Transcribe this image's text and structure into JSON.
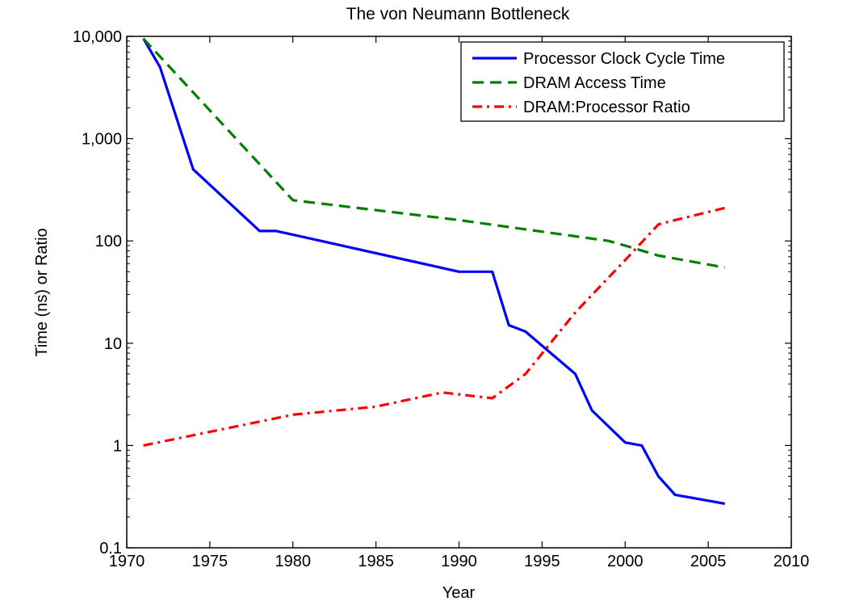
{
  "chart_data": {
    "type": "line",
    "title": "The von Neumann Bottleneck",
    "xlabel": "Year",
    "ylabel": "Time (ns) or Ratio",
    "xlim": [
      1970,
      2010
    ],
    "ylim": [
      0.1,
      10000
    ],
    "yscale": "log",
    "xticks": [
      1970,
      1975,
      1980,
      1985,
      1990,
      1995,
      2000,
      2005,
      2010
    ],
    "xtick_labels": [
      "1970",
      "1975",
      "1980",
      "1985",
      "1990",
      "1995",
      "2000",
      "2005",
      "2010"
    ],
    "yticks": [
      0.1,
      1,
      10,
      100,
      1000,
      10000
    ],
    "ytick_labels": [
      "0.1",
      "1",
      "10",
      "100",
      "1,000",
      "10,000"
    ],
    "grid": false,
    "legend_position": "top-right",
    "series": [
      {
        "name": "Processor Clock Cycle Time",
        "color": "#0000ff",
        "style": "solid",
        "points": [
          [
            1971,
            9500
          ],
          [
            1972,
            5000
          ],
          [
            1974,
            500
          ],
          [
            1978,
            125
          ],
          [
            1979,
            125
          ],
          [
            1990,
            50
          ],
          [
            1992,
            50
          ],
          [
            1993,
            15
          ],
          [
            1994,
            13
          ],
          [
            1997,
            5
          ],
          [
            1998,
            2.2
          ],
          [
            2000,
            1.07
          ],
          [
            2001,
            1.0
          ],
          [
            2002,
            0.5
          ],
          [
            2003,
            0.33
          ],
          [
            2006,
            0.27
          ]
        ]
      },
      {
        "name": "DRAM Access Time",
        "color": "#008000",
        "style": "dashed",
        "points": [
          [
            1971,
            9500
          ],
          [
            1980,
            250
          ],
          [
            1990,
            160
          ],
          [
            1999,
            100
          ],
          [
            2000,
            90
          ],
          [
            2002,
            72
          ],
          [
            2006,
            55
          ]
        ]
      },
      {
        "name": "DRAM:Processor Ratio",
        "color": "#ff0000",
        "style": "dashdot",
        "points": [
          [
            1971,
            1.0
          ],
          [
            1980,
            2.0
          ],
          [
            1985,
            2.4
          ],
          [
            1989,
            3.3
          ],
          [
            1992,
            2.9
          ],
          [
            1994,
            5.0
          ],
          [
            1997,
            20
          ],
          [
            2000,
            65
          ],
          [
            2002,
            145
          ],
          [
            2003,
            160
          ],
          [
            2006,
            210
          ]
        ]
      }
    ]
  }
}
